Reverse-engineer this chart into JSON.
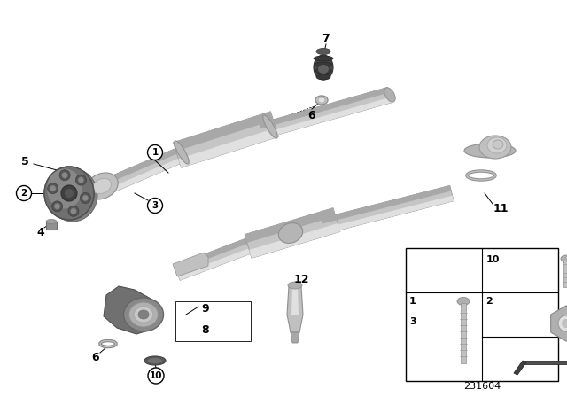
{
  "bg_color": "#ffffff",
  "part_number": "231604",
  "fig_width": 6.4,
  "fig_height": 4.48,
  "dpi": 100,
  "shaft_color_main": "#c8c8c8",
  "shaft_color_dark": "#a0a0a0",
  "shaft_color_light": "#e0e0e0",
  "disc_color_dark": "#707070",
  "disc_color_mid": "#909090",
  "disc_color_light": "#b0b0b0"
}
